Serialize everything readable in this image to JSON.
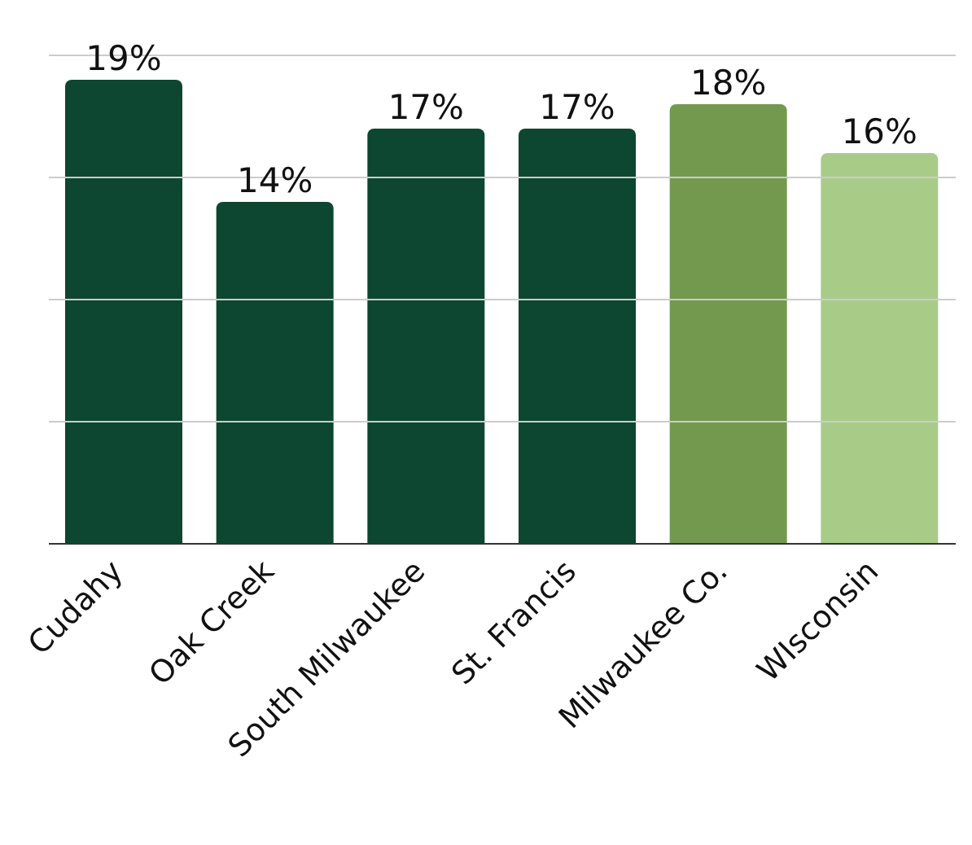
{
  "chart_data": {
    "type": "bar",
    "categories": [
      "Cudahy",
      "Oak Creek",
      "South Milwaukee",
      "St. Francis",
      "Milwaukee Co.",
      "WIsconsin"
    ],
    "values": [
      19,
      14,
      17,
      17,
      18,
      16
    ],
    "colors": [
      "#0d4631",
      "#0d4631",
      "#0d4631",
      "#0d4631",
      "#73994f",
      "#a8cc88"
    ],
    "value_labels": [
      "19%",
      "14%",
      "17%",
      "17%",
      "18%",
      "16%"
    ],
    "ylim": [
      0,
      20
    ],
    "yticks": [
      {
        "value": 0,
        "label": null
      },
      {
        "value": 5,
        "label": null
      },
      {
        "value": 10,
        "label": null
      },
      {
        "value": 15,
        "label": null
      },
      {
        "value": 20,
        "label": null
      }
    ],
    "grid": "y",
    "tick_labels": "x"
  }
}
